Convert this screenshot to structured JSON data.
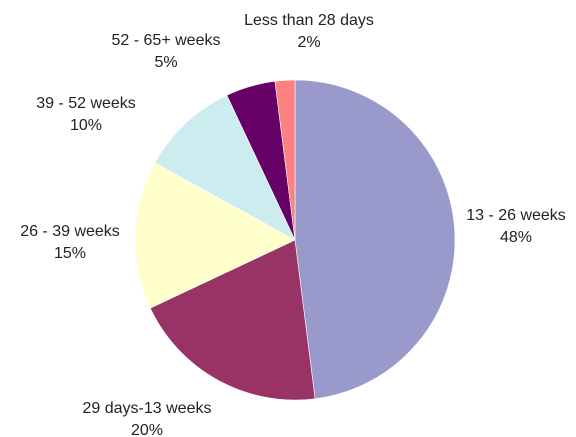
{
  "chart_data": {
    "type": "pie",
    "title": "",
    "start_angle_deg": 0,
    "direction": "clockwise",
    "slices": [
      {
        "label": "13 - 26 weeks",
        "percent_label": "48%",
        "value": 48,
        "color": "#9999CC"
      },
      {
        "label": "29 days-13 weeks",
        "percent_label": "20%",
        "value": 20,
        "color": "#993366"
      },
      {
        "label": "26 - 39 weeks",
        "percent_label": "15%",
        "value": 15,
        "color": "#FFFFCC"
      },
      {
        "label": "39 - 52 weeks",
        "percent_label": "10%",
        "value": 10,
        "color": "#CCECF0"
      },
      {
        "label": "52 - 65+ weeks",
        "percent_label": "5%",
        "value": 5,
        "color": "#660066"
      },
      {
        "label": "Less than 28 days",
        "percent_label": "2%",
        "value": 2,
        "color": "#FF8080"
      }
    ]
  }
}
